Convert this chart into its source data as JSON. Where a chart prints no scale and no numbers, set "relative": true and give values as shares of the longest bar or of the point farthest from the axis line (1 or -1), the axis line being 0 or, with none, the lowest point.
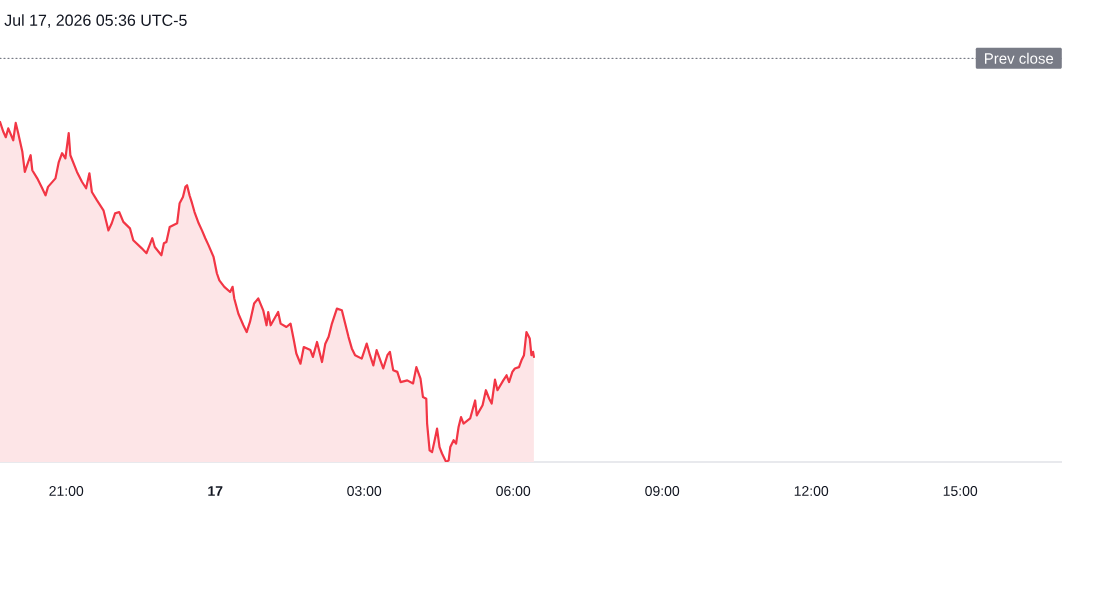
{
  "chart_data": {
    "type": "area",
    "relative": true,
    "color": "#f23645",
    "tick_labels": "x",
    "annotations": [
      "Jul 17, 2026 05:36 UTC-5"
    ],
    "x": [
      "2026-07-16T19:40",
      "2026-07-16T19:44",
      "2026-07-16T19:47",
      "2026-07-16T19:50",
      "2026-07-16T19:56",
      "2026-07-16T19:59",
      "2026-07-16T20:02",
      "2026-07-16T20:07",
      "2026-07-16T20:10",
      "2026-07-16T20:14",
      "2026-07-16T20:17",
      "2026-07-16T20:19",
      "2026-07-16T20:25",
      "2026-07-16T20:31",
      "2026-07-16T20:35",
      "2026-07-16T20:38",
      "2026-07-16T20:47",
      "2026-07-16T20:51",
      "2026-07-16T20:55",
      "2026-07-16T20:59",
      "2026-07-16T21:03",
      "2026-07-16T21:05",
      "2026-07-16T21:13",
      "2026-07-16T21:19",
      "2026-07-16T21:24",
      "2026-07-16T21:28",
      "2026-07-16T21:31",
      "2026-07-16T21:37",
      "2026-07-16T21:45",
      "2026-07-16T21:51",
      "2026-07-16T21:55",
      "2026-07-16T21:59",
      "2026-07-16T22:04",
      "2026-07-16T22:09",
      "2026-07-16T22:17",
      "2026-07-16T22:21",
      "2026-07-16T22:31",
      "2026-07-16T22:37",
      "2026-07-16T22:44",
      "2026-07-16T22:47",
      "2026-07-16T22:55",
      "2026-07-16T22:58",
      "2026-07-16T23:01",
      "2026-07-16T23:05",
      "2026-07-16T23:14",
      "2026-07-16T23:17",
      "2026-07-16T23:21",
      "2026-07-16T23:24",
      "2026-07-16T23:26",
      "2026-07-16T23:29",
      "2026-07-16T23:32",
      "2026-07-16T23:35",
      "2026-07-16T23:40",
      "2026-07-16T23:44",
      "2026-07-16T23:48",
      "2026-07-16T23:52",
      "2026-07-16T23:58",
      "2026-07-17T00:02",
      "2026-07-17T00:05",
      "2026-07-17T00:11",
      "2026-07-17T00:18",
      "2026-07-17T00:21",
      "2026-07-17T00:23",
      "2026-07-17T00:28",
      "2026-07-17T00:34",
      "2026-07-17T00:38",
      "2026-07-17T00:42",
      "2026-07-17T00:47",
      "2026-07-17T00:52",
      "2026-07-17T00:58",
      "2026-07-17T01:02",
      "2026-07-17T01:04",
      "2026-07-17T01:07",
      "2026-07-17T01:16",
      "2026-07-17T01:19",
      "2026-07-17T01:26",
      "2026-07-17T01:31",
      "2026-07-17T01:35",
      "2026-07-17T01:38",
      "2026-07-17T01:43",
      "2026-07-17T01:47",
      "2026-07-17T01:55",
      "2026-07-17T01:58",
      "2026-07-17T02:03",
      "2026-07-17T02:09",
      "2026-07-17T02:13",
      "2026-07-17T02:17",
      "2026-07-17T02:21",
      "2026-07-17T02:27",
      "2026-07-17T02:33",
      "2026-07-17T02:37",
      "2026-07-17T02:41",
      "2026-07-17T02:45",
      "2026-07-17T02:49",
      "2026-07-17T02:57",
      "2026-07-17T03:03",
      "2026-07-17T03:07",
      "2026-07-17T03:11",
      "2026-07-17T03:15",
      "2026-07-17T03:23",
      "2026-07-17T03:28",
      "2026-07-17T03:31",
      "2026-07-17T03:35",
      "2026-07-17T03:40",
      "2026-07-17T03:44",
      "2026-07-17T03:52",
      "2026-07-17T03:59",
      "2026-07-17T04:03",
      "2026-07-17T04:08",
      "2026-07-17T04:11",
      "2026-07-17T04:15",
      "2026-07-17T04:16",
      "2026-07-17T04:19",
      "2026-07-17T04:22",
      "2026-07-17T04:26",
      "2026-07-17T04:28",
      "2026-07-17T04:31",
      "2026-07-17T04:34",
      "2026-07-17T04:39",
      "2026-07-17T04:42",
      "2026-07-17T04:44",
      "2026-07-17T04:48",
      "2026-07-17T04:51",
      "2026-07-17T04:54",
      "2026-07-17T04:57",
      "2026-07-17T05:00",
      "2026-07-17T05:08",
      "2026-07-17T05:14",
      "2026-07-17T05:16",
      "2026-07-17T05:23",
      "2026-07-17T05:27",
      "2026-07-17T05:31",
      "2026-07-17T05:34",
      "2026-07-17T05:38",
      "2026-07-17T05:41",
      "2026-07-17T05:48",
      "2026-07-17T05:52",
      "2026-07-17T05:55",
      "2026-07-17T05:59",
      "2026-07-17T06:02",
      "2026-07-17T06:07",
      "2026-07-17T06:10",
      "2026-07-17T06:13",
      "2026-07-17T06:16",
      "2026-07-17T06:20",
      "2026-07-17T06:22",
      "2026-07-17T06:24",
      "2026-07-17T06:25"
    ],
    "values": [
      1.0,
      0.971,
      0.955,
      0.981,
      0.946,
      0.997,
      0.967,
      0.912,
      0.853,
      0.882,
      0.902,
      0.858,
      0.834,
      0.805,
      0.784,
      0.809,
      0.834,
      0.882,
      0.908,
      0.893,
      0.967,
      0.902,
      0.853,
      0.824,
      0.805,
      0.849,
      0.794,
      0.77,
      0.74,
      0.681,
      0.702,
      0.731,
      0.735,
      0.706,
      0.687,
      0.652,
      0.629,
      0.614,
      0.658,
      0.632,
      0.608,
      0.643,
      0.647,
      0.691,
      0.702,
      0.761,
      0.779,
      0.809,
      0.814,
      0.784,
      0.761,
      0.735,
      0.702,
      0.681,
      0.658,
      0.637,
      0.603,
      0.555,
      0.534,
      0.515,
      0.5,
      0.515,
      0.481,
      0.436,
      0.402,
      0.382,
      0.412,
      0.466,
      0.481,
      0.446,
      0.402,
      0.441,
      0.402,
      0.441,
      0.407,
      0.397,
      0.407,
      0.358,
      0.319,
      0.289,
      0.338,
      0.329,
      0.309,
      0.353,
      0.294,
      0.348,
      0.368,
      0.407,
      0.451,
      0.446,
      0.407,
      0.368,
      0.334,
      0.314,
      0.304,
      0.348,
      0.314,
      0.284,
      0.329,
      0.275,
      0.314,
      0.324,
      0.27,
      0.265,
      0.235,
      0.24,
      0.231,
      0.279,
      0.245,
      0.191,
      0.186,
      0.113,
      0.034,
      0.029,
      0.074,
      0.098,
      0.044,
      0.025,
      0.0,
      0.005,
      0.044,
      0.064,
      0.054,
      0.103,
      0.132,
      0.113,
      0.128,
      0.181,
      0.137,
      0.167,
      0.211,
      0.186,
      0.172,
      0.242,
      0.211,
      0.24,
      0.255,
      0.235,
      0.265,
      0.275,
      0.279,
      0.299,
      0.314,
      0.382,
      0.363,
      0.314,
      0.324,
      0.309
    ],
    "xlim": [
      "2026-07-16T19:40",
      "2026-07-17T17:03"
    ],
    "xticks": [
      {
        "value": "2026-07-16T21:00",
        "label": "21:00"
      },
      {
        "value": "2026-07-17T00:00",
        "label": "17"
      },
      {
        "value": "2026-07-17T03:00",
        "label": "03:00"
      },
      {
        "value": "2026-07-17T06:00",
        "label": "06:00"
      },
      {
        "value": "2026-07-17T09:00",
        "label": "09:00"
      },
      {
        "value": "2026-07-17T12:00",
        "label": "12:00"
      },
      {
        "value": "2026-07-17T15:00",
        "label": "15:00"
      }
    ],
    "ref_lines": [
      {
        "axis": "y",
        "value": 1.187,
        "label": "Prev close",
        "color": "#787b86",
        "line_style": "dotted"
      }
    ]
  }
}
